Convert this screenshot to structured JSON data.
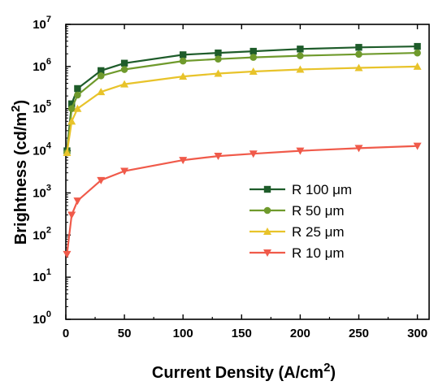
{
  "chart_data": {
    "type": "line",
    "title": "",
    "xlabel": "Current Density (A/cm",
    "xlabel_sup": "2",
    "xlabel_close": ")",
    "ylabel": "Brightness (cd/m",
    "ylabel_sup": "2",
    "ylabel_close": ")",
    "xlim": [
      0,
      310
    ],
    "ylim": [
      1,
      10000000
    ],
    "yscale": "log",
    "xticks": [
      0,
      50,
      100,
      150,
      200,
      250,
      300
    ],
    "xtick_labels": [
      "0",
      "50",
      "100",
      "150",
      "200",
      "250",
      "300"
    ],
    "yticks": [
      1,
      10,
      100,
      1000,
      10000,
      100000,
      1000000,
      10000000
    ],
    "ytick_exponents": [
      "0",
      "1",
      "2",
      "3",
      "4",
      "5",
      "6",
      "7"
    ],
    "ytick_base": "10",
    "grid": false,
    "legend_position": "center-right",
    "series": [
      {
        "name": "R 100 μm",
        "color": "#1e5c2a",
        "marker": "square",
        "x": [
          1,
          5,
          10,
          30,
          50,
          100,
          130,
          160,
          200,
          250,
          300
        ],
        "y": [
          10000,
          130000,
          300000,
          800000,
          1200000,
          1900000,
          2100000,
          2300000,
          2600000,
          2850000,
          3000000
        ]
      },
      {
        "name": "R 50 μm",
        "color": "#6f9a2c",
        "marker": "circle",
        "x": [
          1,
          5,
          10,
          30,
          50,
          100,
          130,
          160,
          200,
          250,
          300
        ],
        "y": [
          9000,
          100000,
          210000,
          600000,
          850000,
          1350000,
          1500000,
          1650000,
          1800000,
          1950000,
          2100000
        ]
      },
      {
        "name": "R 25 μm",
        "color": "#e8c32a",
        "marker": "triangle-up",
        "x": [
          1,
          5,
          10,
          30,
          50,
          100,
          130,
          160,
          200,
          250,
          300
        ],
        "y": [
          9000,
          50000,
          100000,
          250000,
          380000,
          580000,
          680000,
          760000,
          850000,
          930000,
          1000000
        ]
      },
      {
        "name": "R 10 μm",
        "color": "#f05a4a",
        "marker": "triangle-down",
        "x": [
          1,
          5,
          10,
          30,
          50,
          100,
          130,
          160,
          200,
          250,
          300
        ],
        "y": [
          35,
          300,
          650,
          2000,
          3300,
          6000,
          7500,
          8500,
          10000,
          11500,
          13000
        ]
      }
    ]
  }
}
